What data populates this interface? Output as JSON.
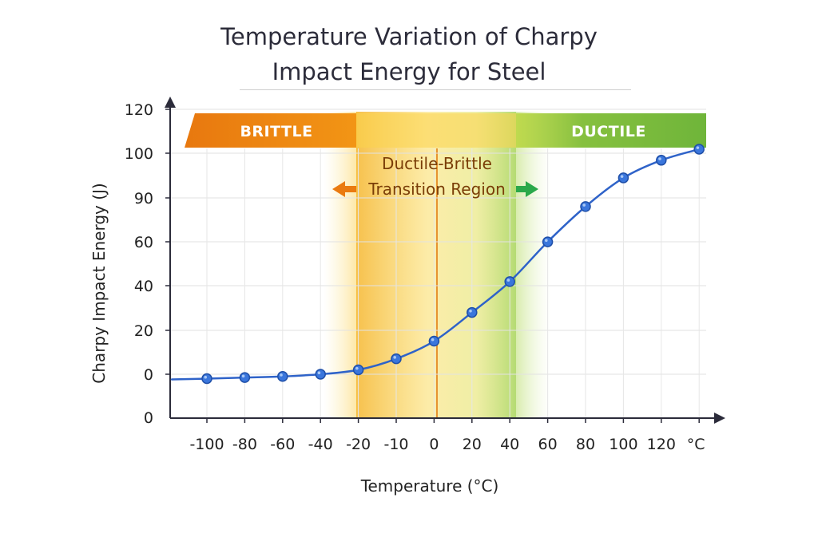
{
  "chart_data": {
    "type": "line",
    "title": [
      "Temperature Variation of Charpy",
      "Impact Energy for Steel"
    ],
    "xlabel": "Temperature (°C)",
    "ylabel": "Charpy Impact Energy (J)",
    "x_tick_labels": [
      "-100",
      "-80",
      "-60",
      "-40",
      "-20",
      "-10",
      "0",
      "20",
      "40",
      "60",
      "80",
      "100",
      "120"
    ],
    "x_unit_label": "°C",
    "y_tick_labels": [
      "0",
      "20",
      "40",
      "60",
      "90",
      "100",
      "120"
    ],
    "series": [
      {
        "points": [
          {
            "x": "-100",
            "y": -2
          },
          {
            "x": "-80",
            "y": -1.5
          },
          {
            "x": "-60",
            "y": -1
          },
          {
            "x": "-40",
            "y": 0
          },
          {
            "x": "-20",
            "y": 2
          },
          {
            "x": "-10",
            "y": 7
          },
          {
            "x": "0",
            "y": 15
          },
          {
            "x": "20",
            "y": 28
          },
          {
            "x": "40",
            "y": 42
          },
          {
            "x": "60",
            "y": 60
          },
          {
            "x": "80",
            "y": 76
          },
          {
            "x": "100",
            "y": 89
          },
          {
            "x": "120",
            "y": 97
          },
          {
            "x": "°C",
            "y": 102
          }
        ],
        "color": "#2f63c9"
      }
    ],
    "regions": {
      "brittle_label": "BRITTLE",
      "ductile_label": "DUCTILE",
      "transition_label": [
        "Ductile-Brittle",
        "Transition Region"
      ],
      "transition_range": [
        "-20",
        "40"
      ]
    },
    "colors": {
      "brittle": "#ea7a10",
      "ductile": "#7fbd3c",
      "transition": "#f7cc3a",
      "line": "#2f63c9",
      "marker": "#3a76dc",
      "left_arrow": "#ea7a10",
      "right_arrow": "#2aa84a"
    },
    "grid": true
  }
}
